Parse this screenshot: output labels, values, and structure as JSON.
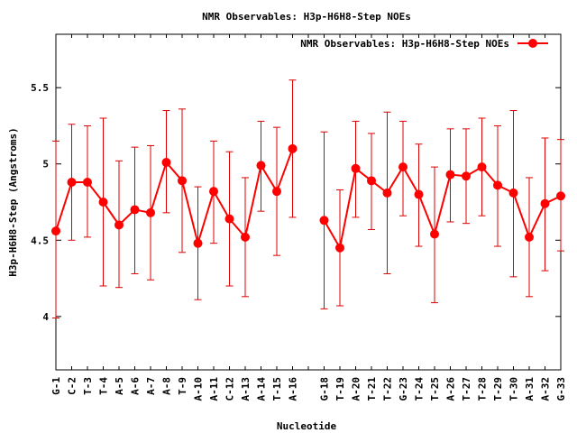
{
  "chart_data": {
    "type": "line",
    "title": "NMR Observables: H3p-H6H8-Step NOEs",
    "xlabel": "Nucleotide",
    "ylabel": "H3p-H6H8-Step (Angstroms)",
    "ylim": [
      3.65,
      5.85
    ],
    "yticks": [
      4,
      4.5,
      5,
      5.5
    ],
    "ytick_labels": [
      "4",
      "4.5",
      "5",
      "5.5"
    ],
    "legend_placement": "top-right",
    "grid": false,
    "colors": {
      "series": "#ff0000",
      "errorbar": "#dd0000"
    },
    "categories": [
      "G-1",
      "C-2",
      "T-3",
      "T-4",
      "A-5",
      "A-6",
      "A-7",
      "A-8",
      "T-9",
      "A-10",
      "A-11",
      "C-12",
      "A-13",
      "A-14",
      "T-15",
      "A-16",
      "",
      "G-18",
      "T-19",
      "A-20",
      "T-21",
      "T-22",
      "G-23",
      "T-24",
      "T-25",
      "A-26",
      "T-27",
      "T-28",
      "T-29",
      "T-30",
      "A-31",
      "A-32",
      "G-33"
    ],
    "series": [
      {
        "name": "NMR Observables: H3p-H6H8-Step NOEs",
        "values": [
          4.56,
          4.88,
          4.88,
          4.75,
          4.6,
          4.7,
          4.68,
          5.01,
          4.89,
          4.48,
          4.82,
          4.64,
          4.52,
          4.99,
          4.82,
          5.1,
          null,
          4.63,
          4.45,
          4.97,
          4.89,
          4.81,
          4.98,
          4.8,
          4.54,
          4.93,
          4.92,
          4.98,
          4.86,
          4.81,
          4.52,
          4.74,
          4.79
        ],
        "err_low": [
          3.99,
          4.5,
          4.52,
          4.2,
          4.19,
          4.28,
          4.24,
          4.68,
          4.42,
          4.11,
          4.48,
          4.2,
          4.13,
          4.69,
          4.4,
          4.65,
          null,
          4.05,
          4.07,
          4.65,
          4.57,
          4.28,
          4.66,
          4.46,
          4.09,
          4.62,
          4.61,
          4.66,
          4.46,
          4.26,
          4.13,
          4.3,
          4.43
        ],
        "err_high": [
          5.15,
          5.26,
          5.25,
          5.3,
          5.02,
          5.11,
          5.12,
          5.35,
          5.36,
          4.85,
          5.15,
          5.08,
          4.91,
          5.28,
          5.24,
          5.55,
          null,
          5.21,
          4.83,
          5.28,
          5.2,
          5.34,
          5.28,
          5.13,
          4.98,
          5.23,
          5.23,
          5.3,
          5.25,
          5.35,
          4.91,
          5.17,
          5.16
        ]
      }
    ]
  }
}
